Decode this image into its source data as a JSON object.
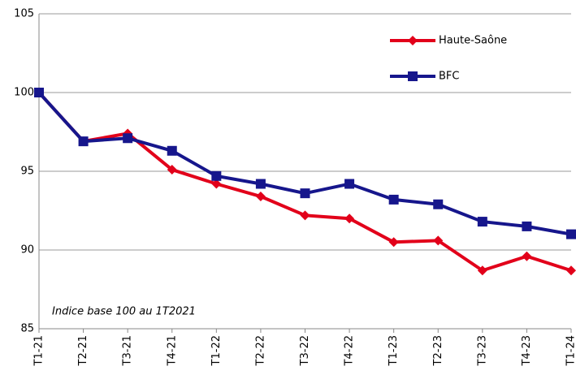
{
  "chart_data": {
    "type": "line",
    "categories": [
      "T1-21",
      "T2-21",
      "T3-21",
      "T4-21",
      "T1-22",
      "T2-22",
      "T3-22",
      "T4-22",
      "T1-23",
      "T2-23",
      "T3-23",
      "T4-23",
      "T1-24"
    ],
    "series": [
      {
        "name": "Haute-Saône",
        "color": "#e2001a",
        "marker": "diamond",
        "values": [
          100,
          96.9,
          97.4,
          95.1,
          94.2,
          93.4,
          92.2,
          92.0,
          90.5,
          90.6,
          88.7,
          89.6,
          88.7
        ]
      },
      {
        "name": "BFC",
        "color": "#16168c",
        "marker": "square",
        "values": [
          100,
          96.9,
          97.1,
          96.3,
          94.7,
          94.2,
          93.6,
          94.2,
          93.2,
          92.9,
          91.8,
          91.5,
          91.0
        ]
      }
    ],
    "annotation": "Indice base 100 au 1T2021",
    "ylim": [
      85,
      105
    ],
    "yticks": [
      85,
      90,
      95,
      100,
      105
    ],
    "grid": true,
    "legend": "upper right"
  }
}
